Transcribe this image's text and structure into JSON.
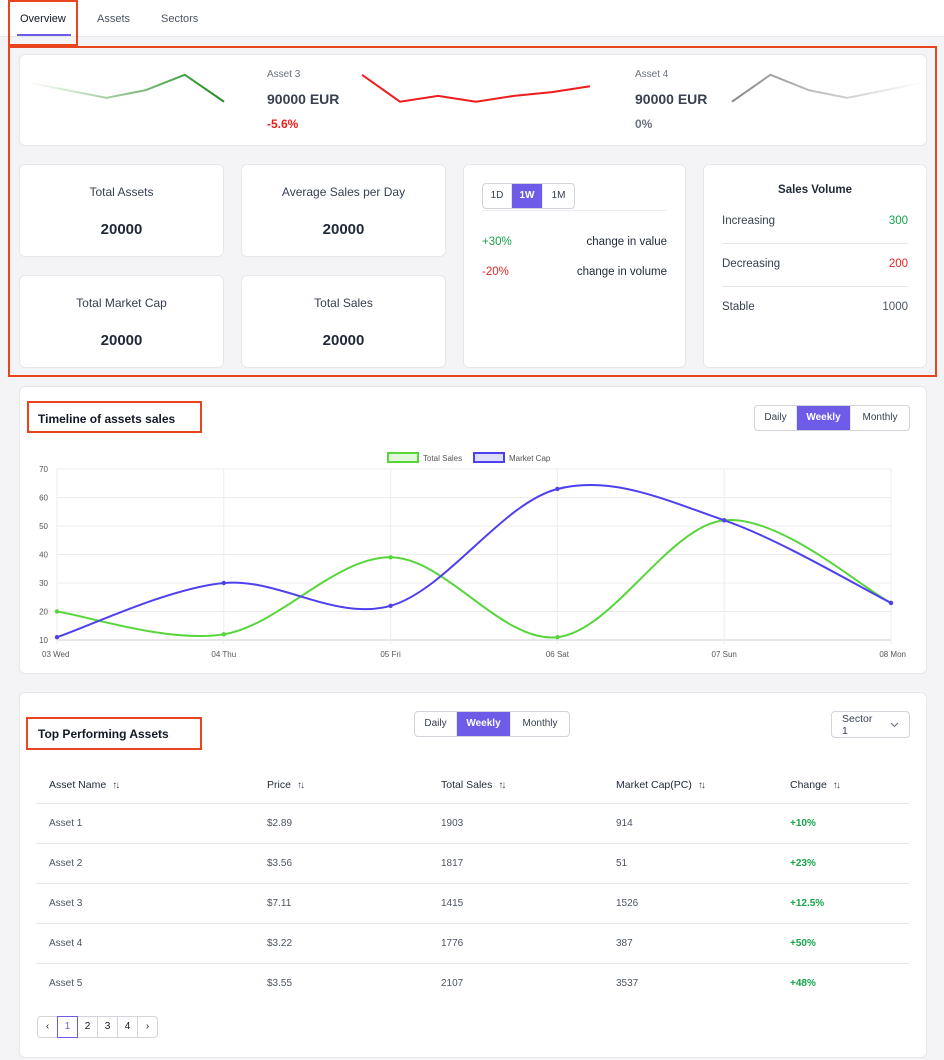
{
  "tabs": [
    {
      "label": "Overview",
      "active": true
    },
    {
      "label": "Assets",
      "active": false
    },
    {
      "label": "Sectors",
      "active": false
    }
  ],
  "ticker": [
    {
      "name": "",
      "price": "",
      "change": "",
      "direction": "up",
      "color": "#1a8a1a",
      "values": [
        18,
        14,
        10,
        14,
        22,
        8
      ]
    },
    {
      "name": "Asset 3",
      "price": "90000 EUR",
      "change": "-5.6%",
      "direction": "down",
      "color": "#ee1c1c",
      "values": [
        22,
        8,
        11,
        8,
        11,
        13,
        16
      ]
    },
    {
      "name": "Asset 4",
      "price": "90000 EUR",
      "change": "0%",
      "direction": "flat",
      "color": "#8a8a8a",
      "values": [
        8,
        22,
        14,
        10,
        14,
        18
      ]
    }
  ],
  "stats": [
    {
      "label": "Total Assets",
      "value": "20000"
    },
    {
      "label": "Average Sales per Day",
      "value": "20000"
    },
    {
      "label": "Total Market Cap",
      "value": "20000"
    },
    {
      "label": "Total Sales",
      "value": "20000"
    }
  ],
  "change_card": {
    "periods": [
      "1D",
      "1W",
      "1M"
    ],
    "active_period": "1W",
    "rows": [
      {
        "value": "+30%",
        "label": "change in value",
        "color": "#16a34a"
      },
      {
        "value": "-20%",
        "label": "change in volume",
        "color": "#dc2626"
      }
    ]
  },
  "sales_volume": {
    "title": "Sales Volume",
    "rows": [
      {
        "label": "Increasing",
        "value": "300",
        "color": "#16a34a"
      },
      {
        "label": "Decreasing",
        "value": "200",
        "color": "#dc2626"
      },
      {
        "label": "Stable",
        "value": "1000",
        "color": "#4b5563"
      }
    ]
  },
  "timeline": {
    "title": "Timeline of assets sales",
    "ranges": [
      "Daily",
      "Weekly",
      "Monthly"
    ],
    "active_range": "Weekly"
  },
  "chart_data": {
    "type": "line",
    "categories": [
      "03 Wed",
      "04 Thu",
      "05 Fri",
      "06 Sat",
      "07 Sun",
      "08 Mon"
    ],
    "series": [
      {
        "name": "Total Sales",
        "values": [
          20,
          12,
          39,
          11,
          52,
          23
        ],
        "color": "#57d63b"
      },
      {
        "name": "Market Cap",
        "values": [
          11,
          30,
          22,
          63,
          52,
          23
        ],
        "color": "#4f40ee"
      }
    ],
    "yticks": [
      10,
      20,
      30,
      40,
      50,
      60,
      70
    ],
    "ylim": [
      10,
      70
    ],
    "grid": true,
    "legend": "top-center",
    "xlabel": "",
    "ylabel": ""
  },
  "top_assets": {
    "title": "Top Performing Assets",
    "ranges": [
      "Daily",
      "Weekly",
      "Monthly"
    ],
    "active_range": "Weekly",
    "sector": "Sector 1",
    "columns": [
      "Asset Name",
      "Price",
      "Total Sales",
      "Market Cap(PC)",
      "Change"
    ],
    "rows": [
      [
        "Asset 1",
        "$2.89",
        "1903",
        "914",
        "+10%"
      ],
      [
        "Asset 2",
        "$3.56",
        "1817",
        "51",
        "+23%"
      ],
      [
        "Asset 3",
        "$7.11",
        "1415",
        "1526",
        "+12.5%"
      ],
      [
        "Asset 4",
        "$3.22",
        "1776",
        "387",
        "+50%"
      ],
      [
        "Asset 5",
        "$3.55",
        "2107",
        "3537",
        "+48%"
      ]
    ]
  },
  "pagination": {
    "prev": "‹",
    "next": "›",
    "pages": [
      "1",
      "2",
      "3",
      "4"
    ],
    "current": "1"
  },
  "colors": {
    "accent": "#6d5ce7",
    "highlight": "#e8451f",
    "positive": "#16a34a",
    "negative": "#dc2626"
  }
}
